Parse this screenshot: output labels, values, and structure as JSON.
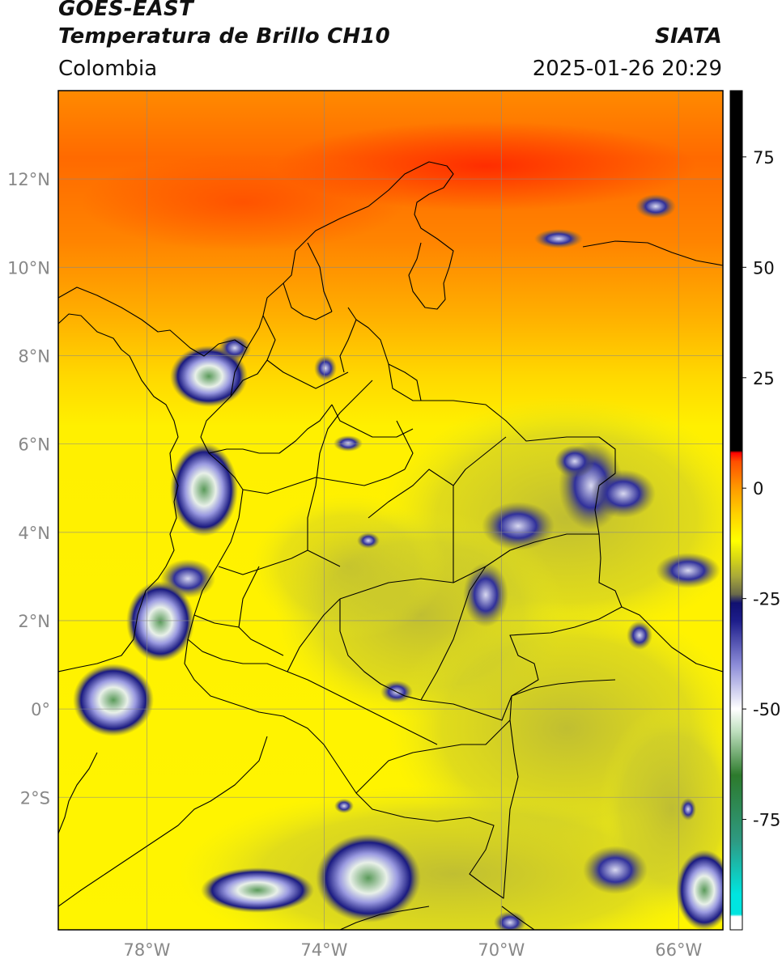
{
  "header": {
    "satellite": "GOES-EAST",
    "product": "Temperatura de Brillo CH10",
    "org": "SIATA",
    "region": "Colombia",
    "datetime": "2025-01-26 20:29"
  },
  "map": {
    "lon_range": [
      -80,
      -65
    ],
    "lat_range": [
      -5,
      14
    ],
    "lon_ticks": [
      {
        "label": "78°W",
        "value": -78
      },
      {
        "label": "74°W",
        "value": -74
      },
      {
        "label": "70°W",
        "value": -70
      },
      {
        "label": "66°W",
        "value": -66
      }
    ],
    "lat_ticks": [
      {
        "label": "12°N",
        "value": 12
      },
      {
        "label": "10°N",
        "value": 10
      },
      {
        "label": "8°N",
        "value": 8
      },
      {
        "label": "6°N",
        "value": 6
      },
      {
        "label": "4°N",
        "value": 4
      },
      {
        "label": "2°N",
        "value": 2
      },
      {
        "label": "0°",
        "value": 0
      },
      {
        "label": "2°S",
        "value": -2
      }
    ],
    "grid": true
  },
  "colorbar": {
    "range": [
      -100,
      90
    ],
    "ticks": [
      {
        "label": "75",
        "value": 75
      },
      {
        "label": "50",
        "value": 50
      },
      {
        "label": "25",
        "value": 25
      },
      {
        "label": "0",
        "value": 0
      },
      {
        "label": "-25",
        "value": -25
      },
      {
        "label": "-50",
        "value": -50
      },
      {
        "label": "-75",
        "value": -75
      }
    ],
    "stops": [
      {
        "value": -100,
        "color": "#ffffff"
      },
      {
        "value": -97,
        "color": "#ffffff"
      },
      {
        "value": -96.5,
        "color": "#00e5e0"
      },
      {
        "value": -92,
        "color": "#00e5e0"
      },
      {
        "value": -80,
        "color": "#2e9a83"
      },
      {
        "value": -65,
        "color": "#2d7a2c"
      },
      {
        "value": -55,
        "color": "#bfe0bf"
      },
      {
        "value": -50,
        "color": "#ffffff"
      },
      {
        "value": -40,
        "color": "#8c8cd8"
      },
      {
        "value": -30,
        "color": "#1d1d8a"
      },
      {
        "value": -26,
        "color": "#101070"
      },
      {
        "value": -24,
        "color": "#6a6a4a"
      },
      {
        "value": -20,
        "color": "#a8a83a"
      },
      {
        "value": -16,
        "color": "#d6d616"
      },
      {
        "value": -12,
        "color": "#ffff00"
      },
      {
        "value": -6,
        "color": "#ffd200"
      },
      {
        "value": 0,
        "color": "#ff9a00"
      },
      {
        "value": 6,
        "color": "#ff5000"
      },
      {
        "value": 8,
        "color": "#ff0000"
      },
      {
        "value": 8.5,
        "color": "#000000"
      },
      {
        "value": 90,
        "color": "#000000"
      }
    ]
  }
}
